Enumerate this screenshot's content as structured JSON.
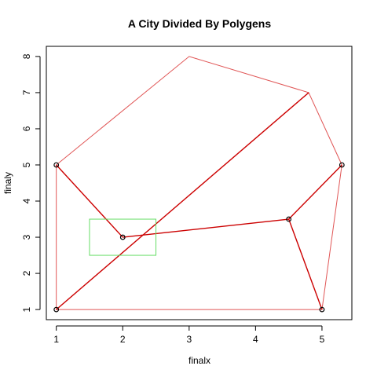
{
  "chart_data": {
    "type": "scatter",
    "title": "A City Divided By Polygens",
    "xlabel": "finalx",
    "ylabel": "finaly",
    "xlim": [
      0.85,
      5.45
    ],
    "ylim": [
      0.72,
      8.28
    ],
    "x_ticks": [
      1,
      2,
      3,
      4,
      5
    ],
    "y_ticks": [
      1,
      2,
      3,
      4,
      5,
      6,
      7,
      8
    ],
    "grid": false,
    "points": [
      {
        "x": 1,
        "y": 5
      },
      {
        "x": 2,
        "y": 3
      },
      {
        "x": 1,
        "y": 1
      },
      {
        "x": 4.5,
        "y": 3.5
      },
      {
        "x": 5.3,
        "y": 5
      },
      {
        "x": 5,
        "y": 1
      }
    ],
    "outer_polygon": [
      [
        1,
        5
      ],
      [
        3,
        8
      ],
      [
        4.8,
        7
      ],
      [
        5.3,
        5
      ],
      [
        5,
        1
      ],
      [
        1,
        1
      ]
    ],
    "dividing_lines": [
      [
        [
          1,
          5
        ],
        [
          2,
          3
        ]
      ],
      [
        [
          1,
          1
        ],
        [
          4.8,
          7
        ]
      ],
      [
        [
          2,
          3
        ],
        [
          4.5,
          3.5
        ]
      ],
      [
        [
          4.5,
          3.5
        ],
        [
          5.3,
          5
        ]
      ],
      [
        [
          4.5,
          3.5
        ],
        [
          5,
          1
        ]
      ]
    ],
    "rectangle": {
      "x0": 1.5,
      "x1": 2.5,
      "y0": 2.5,
      "y1": 3.5
    },
    "colors": {
      "outer_polygon": "#e05555",
      "dividing_lines": "#cc0000",
      "rectangle": "#66dd66",
      "points": "#000000"
    }
  }
}
